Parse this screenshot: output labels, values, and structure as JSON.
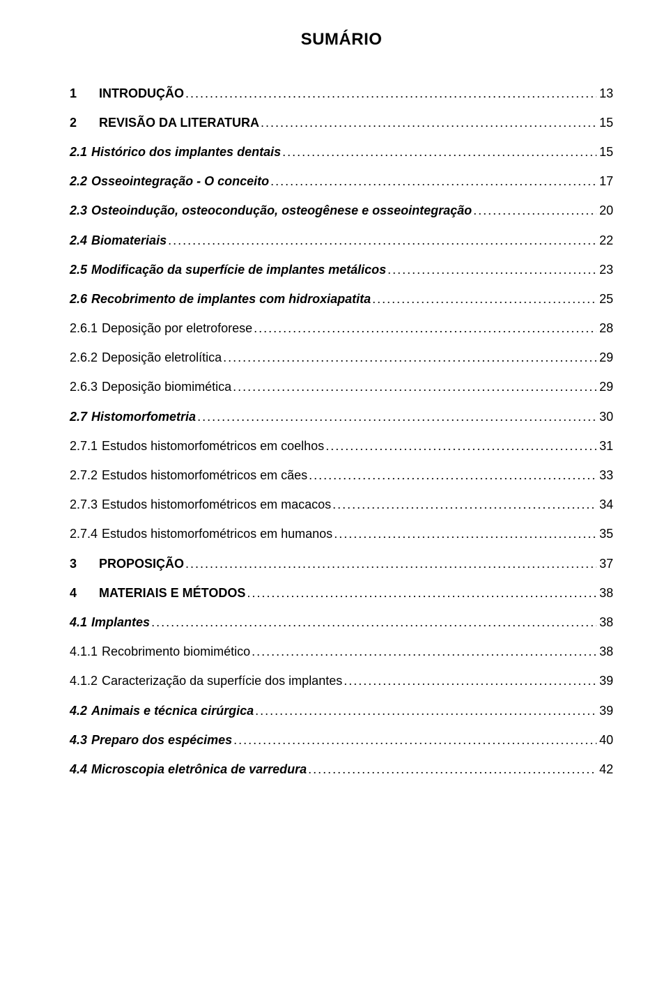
{
  "title": "SUMÁRIO",
  "entries": [
    {
      "num": "1",
      "label": "INTRODUÇÃO",
      "page": "13",
      "bold": true,
      "italic": false,
      "top": true
    },
    {
      "num": "2",
      "label": "REVISÃO DA LITERATURA",
      "page": "15",
      "bold": true,
      "italic": false,
      "top": true
    },
    {
      "num": "2.1",
      "label": "Histórico dos implantes dentais",
      "page": "15",
      "bold": true,
      "italic": true,
      "top": false
    },
    {
      "num": "2.2",
      "label": "Osseointegração - O conceito",
      "page": "17",
      "bold": true,
      "italic": true,
      "top": false
    },
    {
      "num": "2.3",
      "label": "Osteoindução, osteocondução, osteogênese e osseointegração",
      "page": "20",
      "bold": true,
      "italic": true,
      "top": false
    },
    {
      "num": "2.4",
      "label": "Biomateriais",
      "page": "22",
      "bold": true,
      "italic": true,
      "top": false
    },
    {
      "num": "2.5",
      "label": "Modificação da superfície de implantes metálicos",
      "page": "23",
      "bold": true,
      "italic": true,
      "top": false
    },
    {
      "num": "2.6",
      "label": "Recobrimento de implantes com hidroxiapatita",
      "page": "25",
      "bold": true,
      "italic": true,
      "top": false
    },
    {
      "num": "2.6.1",
      "label": "Deposição por eletroforese",
      "page": "28",
      "bold": false,
      "italic": false,
      "top": false
    },
    {
      "num": "2.6.2",
      "label": "Deposição eletrolítica",
      "page": "29",
      "bold": false,
      "italic": false,
      "top": false
    },
    {
      "num": "2.6.3",
      "label": "Deposição biomimética",
      "page": "29",
      "bold": false,
      "italic": false,
      "top": false
    },
    {
      "num": "2.7",
      "label": "Histomorfometria",
      "page": "30",
      "bold": true,
      "italic": true,
      "top": false
    },
    {
      "num": "2.7.1",
      "label": "Estudos histomorfométricos em coelhos",
      "page": "31",
      "bold": false,
      "italic": false,
      "top": false
    },
    {
      "num": "2.7.2",
      "label": "Estudos histomorfométricos em cães",
      "page": "33",
      "bold": false,
      "italic": false,
      "top": false
    },
    {
      "num": "2.7.3",
      "label": "Estudos histomorfométricos em macacos",
      "page": "34",
      "bold": false,
      "italic": false,
      "top": false
    },
    {
      "num": "2.7.4",
      "label": "Estudos histomorfométricos em humanos",
      "page": "35",
      "bold": false,
      "italic": false,
      "top": false
    },
    {
      "num": "3",
      "label": "PROPOSIÇÃO",
      "page": "37",
      "bold": true,
      "italic": false,
      "top": true
    },
    {
      "num": "4",
      "label": "MATERIAIS E MÉTODOS",
      "page": "38",
      "bold": true,
      "italic": false,
      "top": true
    },
    {
      "num": "4.1",
      "label": "Implantes",
      "page": "38",
      "bold": true,
      "italic": true,
      "top": false
    },
    {
      "num": "4.1.1",
      "label": "Recobrimento biomimético",
      "page": "38",
      "bold": false,
      "italic": false,
      "top": false
    },
    {
      "num": "4.1.2",
      "label": "Caracterização da superfície dos implantes",
      "page": "39",
      "bold": false,
      "italic": false,
      "top": false
    },
    {
      "num": "4.2",
      "label": "Animais e técnica cirúrgica",
      "page": "39",
      "bold": true,
      "italic": true,
      "top": false
    },
    {
      "num": "4.3",
      "label": "Preparo dos espécimes",
      "page": "40",
      "bold": true,
      "italic": true,
      "top": false
    },
    {
      "num": "4.4",
      "label": "Microscopia eletrônica de varredura",
      "page": " 42",
      "bold": true,
      "italic": true,
      "top": false
    }
  ]
}
